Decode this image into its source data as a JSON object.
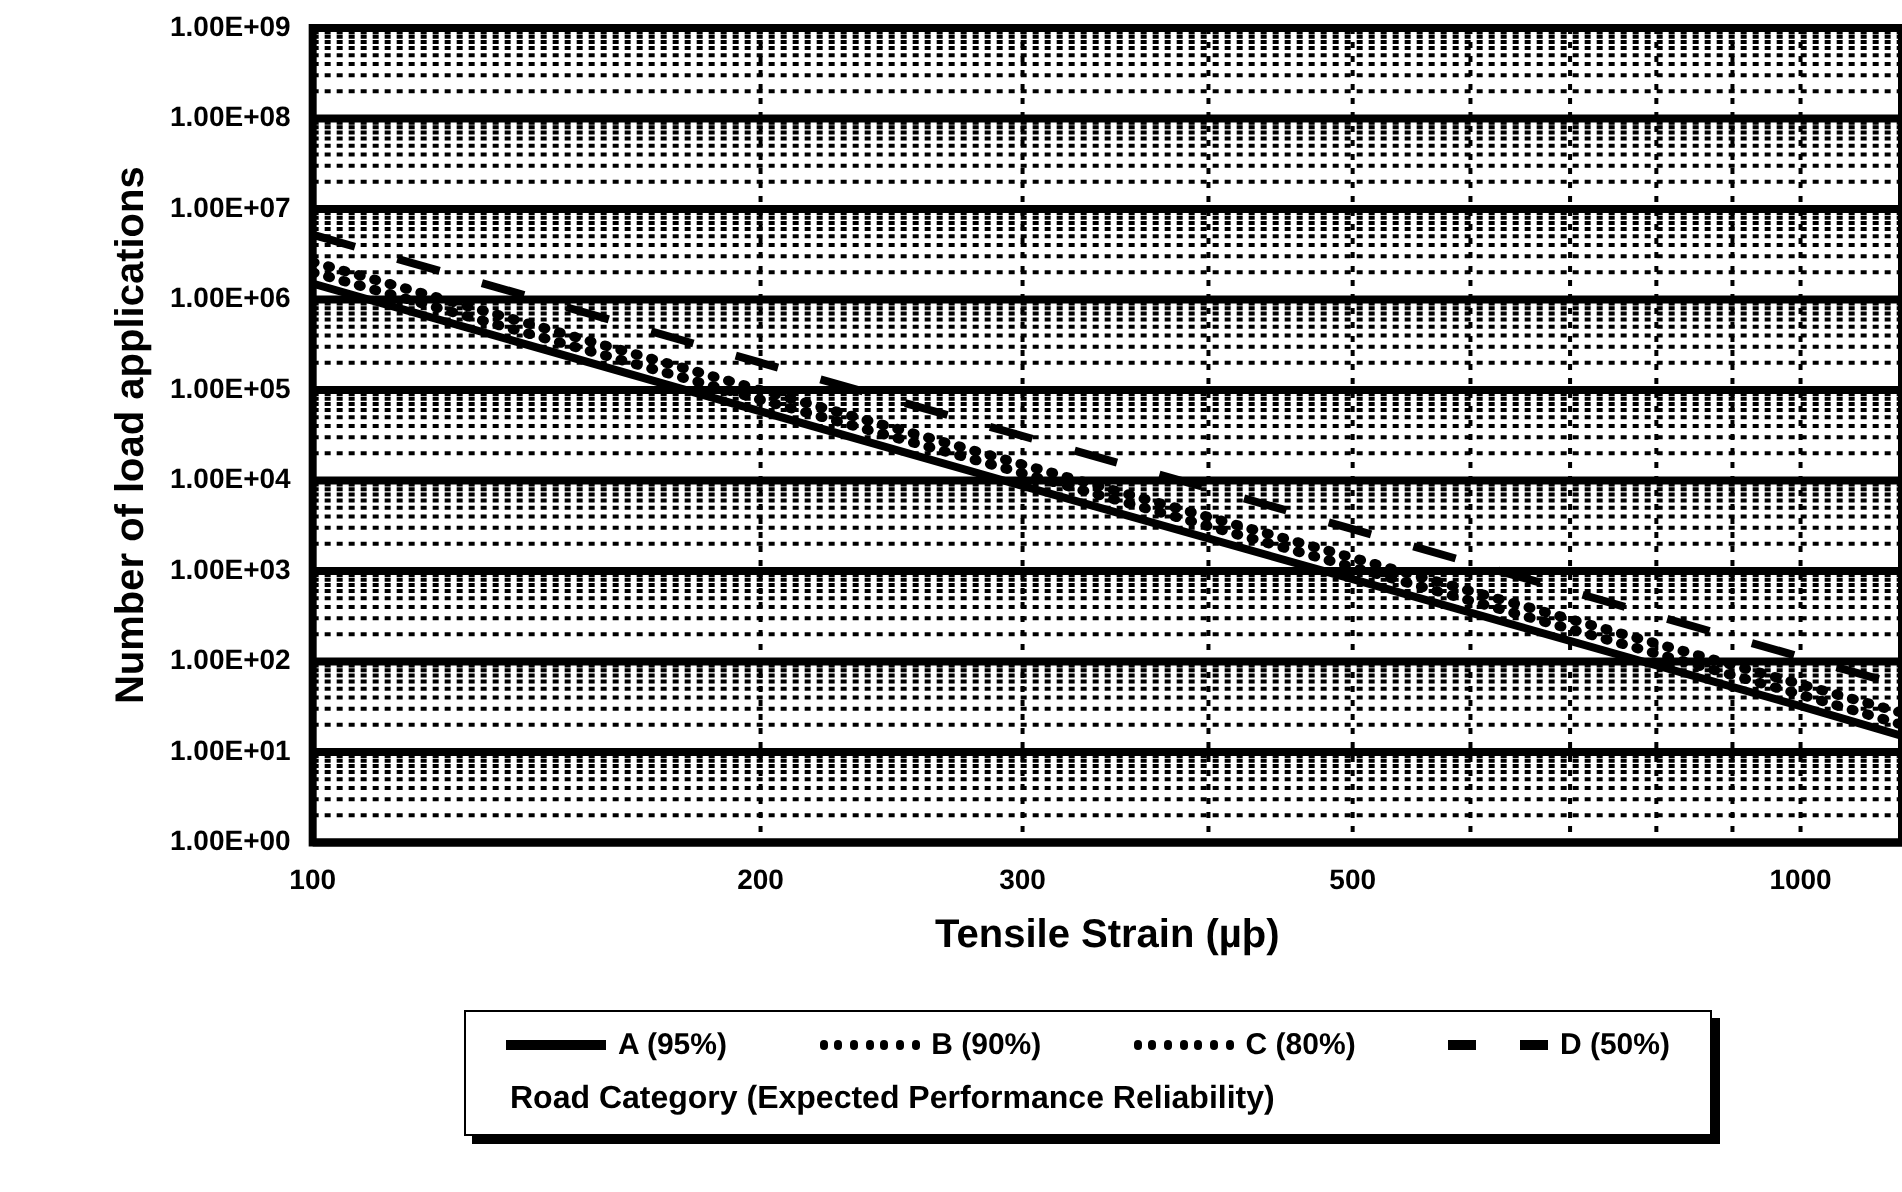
{
  "chart_data": {
    "type": "line",
    "xlabel": "Tensile Strain (µþ)",
    "ylabel": "Number of load applications",
    "legend_title": "Road Category (Expected Performance Reliability)",
    "legend": "bottom",
    "grid": true,
    "log": "xy",
    "marker": "none",
    "xlim": [
      100,
      1170
    ],
    "ylim": [
      1,
      1000000000
    ],
    "xticks": [
      100,
      200,
      300,
      {
        "value": 400,
        "label": null
      },
      500,
      {
        "value": 600,
        "label": null
      },
      {
        "value": 700,
        "label": null
      },
      {
        "value": 800,
        "label": null
      },
      {
        "value": 900,
        "label": null
      },
      1000
    ],
    "yticks": [
      {
        "value": 1,
        "label": "1.00E+00"
      },
      {
        "value": 2,
        "label": null
      },
      {
        "value": 3,
        "label": null
      },
      {
        "value": 4,
        "label": null
      },
      {
        "value": 5,
        "label": null
      },
      {
        "value": 6,
        "label": null
      },
      {
        "value": 7,
        "label": null
      },
      {
        "value": 8,
        "label": null
      },
      {
        "value": 9,
        "label": null
      },
      {
        "value": 10,
        "label": "1.00E+01"
      },
      {
        "value": 20,
        "label": null
      },
      {
        "value": 30,
        "label": null
      },
      {
        "value": 40,
        "label": null
      },
      {
        "value": 50,
        "label": null
      },
      {
        "value": 60,
        "label": null
      },
      {
        "value": 70,
        "label": null
      },
      {
        "value": 80,
        "label": null
      },
      {
        "value": 90,
        "label": null
      },
      {
        "value": 100,
        "label": "1.00E+02"
      },
      {
        "value": 200,
        "label": null
      },
      {
        "value": 300,
        "label": null
      },
      {
        "value": 400,
        "label": null
      },
      {
        "value": 500,
        "label": null
      },
      {
        "value": 600,
        "label": null
      },
      {
        "value": 700,
        "label": null
      },
      {
        "value": 800,
        "label": null
      },
      {
        "value": 900,
        "label": null
      },
      {
        "value": 1000,
        "label": "1.00E+03"
      },
      {
        "value": 2000,
        "label": null
      },
      {
        "value": 3000,
        "label": null
      },
      {
        "value": 4000,
        "label": null
      },
      {
        "value": 5000,
        "label": null
      },
      {
        "value": 6000,
        "label": null
      },
      {
        "value": 7000,
        "label": null
      },
      {
        "value": 8000,
        "label": null
      },
      {
        "value": 9000,
        "label": null
      },
      {
        "value": 10000,
        "label": "1.00E+04"
      },
      {
        "value": 20000,
        "label": null
      },
      {
        "value": 30000,
        "label": null
      },
      {
        "value": 40000,
        "label": null
      },
      {
        "value": 50000,
        "label": null
      },
      {
        "value": 60000,
        "label": null
      },
      {
        "value": 70000,
        "label": null
      },
      {
        "value": 80000,
        "label": null
      },
      {
        "value": 90000,
        "label": null
      },
      {
        "value": 100000,
        "label": "1.00E+05"
      },
      {
        "value": 200000,
        "label": null
      },
      {
        "value": 300000,
        "label": null
      },
      {
        "value": 400000,
        "label": null
      },
      {
        "value": 500000,
        "label": null
      },
      {
        "value": 600000,
        "label": null
      },
      {
        "value": 700000,
        "label": null
      },
      {
        "value": 800000,
        "label": null
      },
      {
        "value": 900000,
        "label": null
      },
      {
        "value": 1000000,
        "label": "1.00E+06"
      },
      {
        "value": 2000000,
        "label": null
      },
      {
        "value": 3000000,
        "label": null
      },
      {
        "value": 4000000,
        "label": null
      },
      {
        "value": 5000000,
        "label": null
      },
      {
        "value": 6000000,
        "label": null
      },
      {
        "value": 7000000,
        "label": null
      },
      {
        "value": 8000000,
        "label": null
      },
      {
        "value": 9000000,
        "label": null
      },
      {
        "value": 10000000,
        "label": "1.00E+07"
      },
      {
        "value": 20000000,
        "label": null
      },
      {
        "value": 30000000,
        "label": null
      },
      {
        "value": 40000000,
        "label": null
      },
      {
        "value": 50000000,
        "label": null
      },
      {
        "value": 60000000,
        "label": null
      },
      {
        "value": 70000000,
        "label": null
      },
      {
        "value": 80000000,
        "label": null
      },
      {
        "value": 90000000,
        "label": null
      },
      {
        "value": 100000000,
        "label": "1.00E+08"
      },
      {
        "value": 200000000,
        "label": null
      },
      {
        "value": 300000000,
        "label": null
      },
      {
        "value": 400000000,
        "label": null
      },
      {
        "value": 500000000,
        "label": null
      },
      {
        "value": 600000000,
        "label": null
      },
      {
        "value": 700000000,
        "label": null
      },
      {
        "value": 800000000,
        "label": null
      },
      {
        "value": 900000000,
        "label": null
      },
      {
        "value": 1000000000,
        "label": "1.00E+09"
      }
    ],
    "x": [
      100,
      200,
      300,
      500,
      1000,
      1170
    ],
    "series": [
      {
        "name": "A (95%)",
        "color": "#000000",
        "line_style": "solid",
        "values": [
          1500000,
          58000,
          8700,
          810,
          32,
          15
        ]
      },
      {
        "name": "B (90%)",
        "color": "#000000",
        "line_style": "dotted",
        "values": [
          2000000,
          78000,
          12000,
          1100,
          43,
          20
        ]
      },
      {
        "name": "C (80%)",
        "color": "#000000",
        "line_style": "dotted",
        "values": [
          2600000,
          100000,
          15000,
          1400,
          56,
          27
        ]
      },
      {
        "name": "D (50%)",
        "color": "#000000",
        "line_style": "dashed",
        "values": [
          5200000,
          200000,
          31000,
          2900,
          112,
          54
        ]
      }
    ]
  }
}
